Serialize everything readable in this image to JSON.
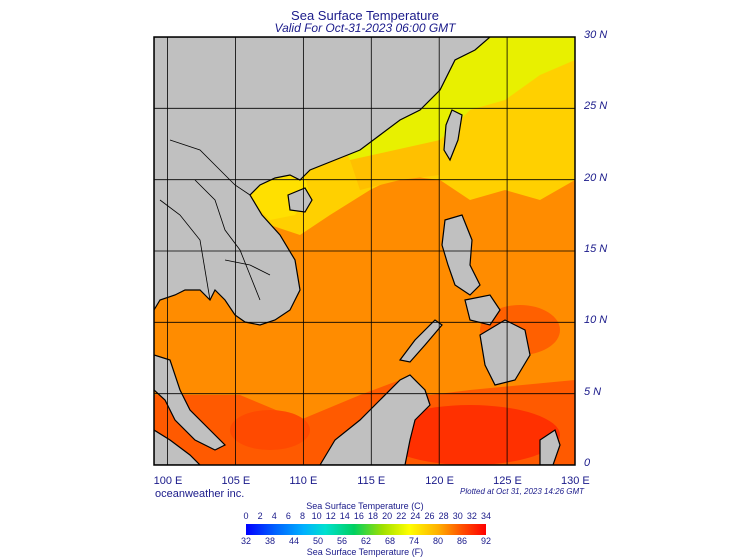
{
  "title": "Sea Surface Temperature",
  "subtitle": "Valid For Oct-31-2023 06:00 GMT",
  "map": {
    "lon_range": [
      99,
      130
    ],
    "lat_range": [
      0,
      30
    ],
    "grid_lons": [
      100,
      105,
      110,
      115,
      120,
      125,
      130
    ],
    "grid_lats": [
      0,
      5,
      10,
      15,
      20,
      25,
      30
    ],
    "land_color": "#c0c0c0",
    "ocean_warm_color": "#ff8a00",
    "ocean_cool_color": "#ffe000"
  },
  "x_labels": [
    "100 E",
    "105 E",
    "110 E",
    "115 E",
    "120 E",
    "125 E",
    "130 E"
  ],
  "y_labels": [
    "30 N",
    "25 N",
    "20 N",
    "15 N",
    "10 N",
    "5 N",
    "0"
  ],
  "credit": "oceanweather inc.",
  "plotted": "Plotted at Oct 31, 2023 14:26 GMT",
  "colorbar": {
    "title_c": "Sea Surface Temperature (C)",
    "title_f": "Sea Surface Temperature (F)",
    "ticks_c": [
      "0",
      "2",
      "4",
      "6",
      "8",
      "10",
      "12",
      "14",
      "16",
      "18",
      "20",
      "22",
      "24",
      "26",
      "28",
      "30",
      "32",
      "34"
    ],
    "ticks_f": [
      "32",
      "38",
      "44",
      "50",
      "56",
      "62",
      "68",
      "74",
      "80",
      "86",
      "92"
    ]
  }
}
